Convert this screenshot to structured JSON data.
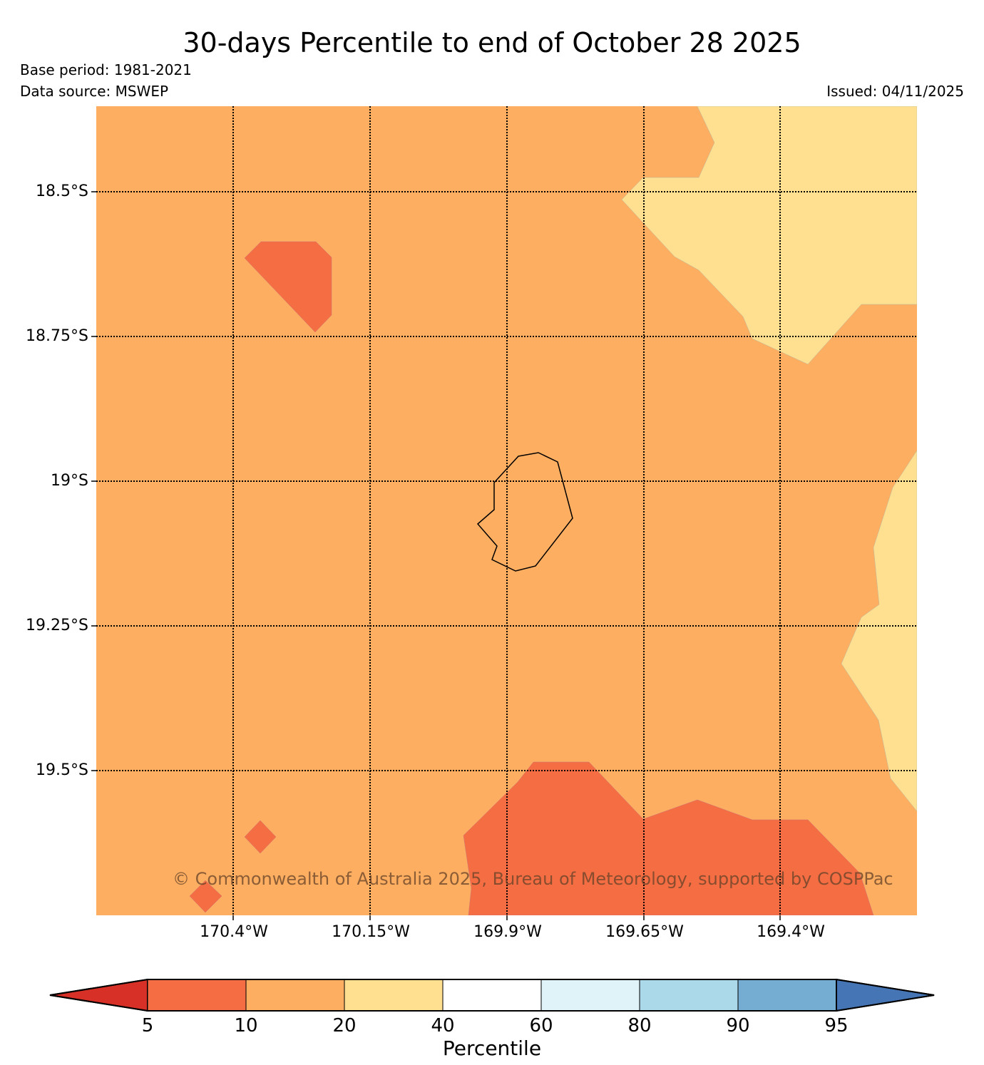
{
  "title": "30-days Percentile to end of October 28 2025",
  "base_period": "Base period: 1981-2021",
  "data_source": "Data source: MSWEP",
  "issued": "Issued: 04/11/2025",
  "copyright": "© Commonwealth of Australia 2025, Bureau of Meteorology, supported by COSPPac",
  "lat_labels": [
    "18.5°S",
    "18.75°S",
    "19°S",
    "19.25°S",
    "19.5°S"
  ],
  "lon_labels": [
    "170.4°W",
    "170.15°W",
    "169.9°W",
    "169.65°W",
    "169.4°W"
  ],
  "colorbar": {
    "label": "Percentile",
    "ticks": [
      "5",
      "10",
      "20",
      "40",
      "60",
      "80",
      "90",
      "95"
    ],
    "colors": {
      "below_5": "#d73027",
      "p5_10": "#f46d43",
      "p10_20": "#fdae61",
      "p20_40": "#fee090",
      "p40_60": "#ffffff",
      "p60_80": "#e0f3f8",
      "p80_90": "#abd9e9",
      "p90_95": "#74add1",
      "above_95": "#4575b4"
    }
  },
  "map_regions": {
    "background": "10-20 percentile",
    "northeast": "20-40 percentile",
    "east": "20-40 percentile",
    "south": "5-10 percentile",
    "northwest_patch": "5-10 percentile",
    "southwest_patches": "5-10 percentile",
    "island": "Niue outline"
  }
}
